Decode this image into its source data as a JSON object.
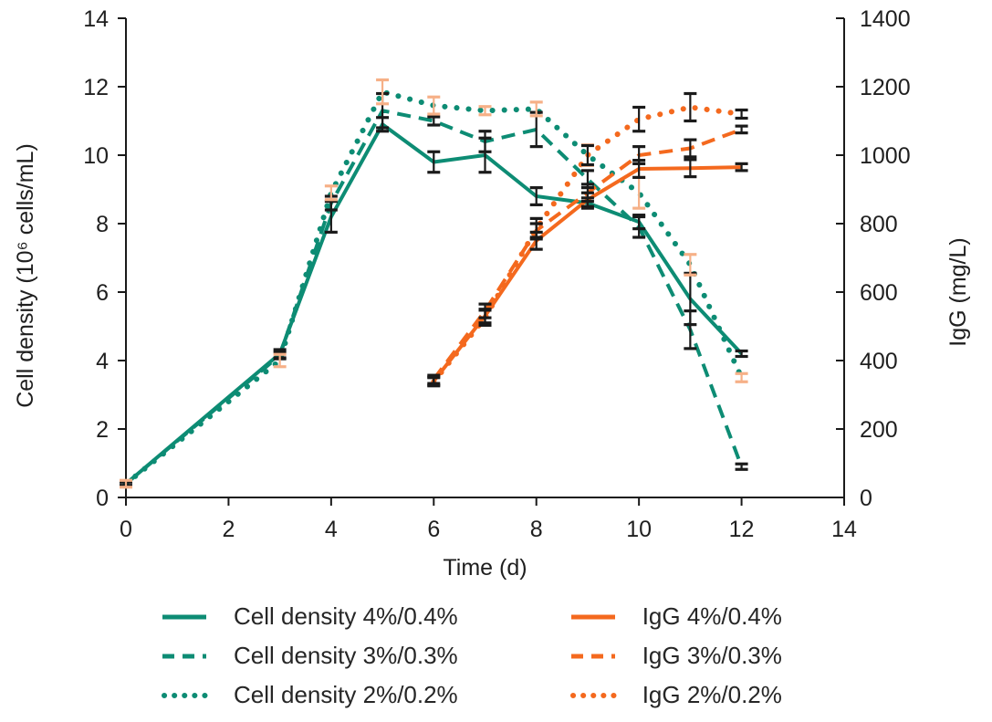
{
  "chart_data": {
    "type": "line",
    "title": "",
    "xlabel": "Time (d)",
    "ylabel_left": "Cell density (10⁶ cells/mL)",
    "ylabel_right": "IgG (mg/L)",
    "xlim": [
      0,
      14
    ],
    "ylim_left": [
      0,
      14
    ],
    "ylim_right": [
      0,
      1400
    ],
    "x_ticks": [
      0,
      2,
      4,
      6,
      8,
      10,
      12,
      14
    ],
    "y_left_ticks": [
      0,
      2,
      4,
      6,
      8,
      10,
      12,
      14
    ],
    "y_right_ticks": [
      0,
      200,
      400,
      600,
      800,
      1000,
      1200,
      1400
    ],
    "grid": false,
    "legend_position": "bottom",
    "colors": {
      "teal": "#0d8c74",
      "orange": "#f4691e",
      "peach_errorbar": "#f6b087",
      "black_errorbar": "#1a1a1a",
      "axis": "#1a1a1a"
    },
    "series": [
      {
        "name": "Cell density 4%/0.4%",
        "axis": "left",
        "style": "solid",
        "color": "#0d8c74",
        "errcolor": "#1a1a1a",
        "x": [
          0,
          3,
          4,
          5,
          6,
          7,
          8,
          9,
          10,
          11,
          12
        ],
        "y": [
          0.4,
          4.2,
          8.2,
          10.9,
          9.8,
          10.0,
          8.8,
          8.6,
          8.05,
          5.8,
          4.2
        ],
        "err": [
          0.05,
          0.12,
          0.45,
          0.2,
          0.3,
          0.5,
          0.25,
          0.15,
          0.2,
          0.75,
          0.08
        ]
      },
      {
        "name": "Cell density 3%/0.3%",
        "axis": "left",
        "style": "dashed",
        "color": "#0d8c74",
        "errcolor": "#1a1a1a",
        "x": [
          0,
          3,
          4,
          5,
          6,
          7,
          8,
          9,
          10,
          11,
          12
        ],
        "y": [
          0.4,
          4.15,
          8.6,
          11.3,
          11.0,
          10.4,
          10.75,
          9.3,
          7.9,
          4.9,
          0.9
        ],
        "err": [
          0.05,
          0.1,
          0.2,
          0.5,
          0.12,
          0.3,
          0.5,
          0.25,
          0.3,
          0.55,
          0.08
        ]
      },
      {
        "name": "Cell density 2%/0.2%",
        "axis": "left",
        "style": "dotted",
        "color": "#0d8c74",
        "errcolor": "#f6b087",
        "x": [
          0,
          3,
          4,
          5,
          6,
          7,
          8,
          9,
          10,
          11,
          12
        ],
        "y": [
          0.4,
          4.0,
          8.9,
          11.85,
          11.45,
          11.3,
          11.35,
          10.0,
          8.9,
          6.8,
          3.5
        ],
        "err": [
          0.1,
          0.18,
          0.2,
          0.35,
          0.25,
          0.12,
          0.2,
          0.3,
          0.45,
          0.3,
          0.12
        ]
      },
      {
        "name": "IgG 4%/0.4%",
        "axis": "right",
        "style": "solid",
        "color": "#f4691e",
        "errcolor": "#1a1a1a",
        "x": [
          6,
          7,
          8,
          9,
          10,
          11,
          12
        ],
        "y": [
          340,
          530,
          750,
          870,
          960,
          962,
          965
        ],
        "err": [
          12,
          20,
          25,
          20,
          25,
          25,
          10
        ]
      },
      {
        "name": "IgG 3%/0.3%",
        "axis": "right",
        "style": "dashed",
        "color": "#f4691e",
        "errcolor": "#1a1a1a",
        "x": [
          6,
          7,
          8,
          9,
          10,
          11,
          12
        ],
        "y": [
          345,
          545,
          780,
          890,
          1000,
          1020,
          1075
        ],
        "err": [
          12,
          20,
          20,
          25,
          25,
          25,
          10
        ]
      },
      {
        "name": "IgG 2%/0.2%",
        "axis": "right",
        "style": "dotted",
        "color": "#f4691e",
        "errcolor": "#1a1a1a",
        "x": [
          6,
          7,
          8,
          9,
          10,
          11,
          12
        ],
        "y": [
          338,
          525,
          785,
          1000,
          1105,
          1140,
          1120
        ],
        "err": [
          12,
          22,
          30,
          28,
          35,
          40,
          12
        ]
      }
    ]
  }
}
